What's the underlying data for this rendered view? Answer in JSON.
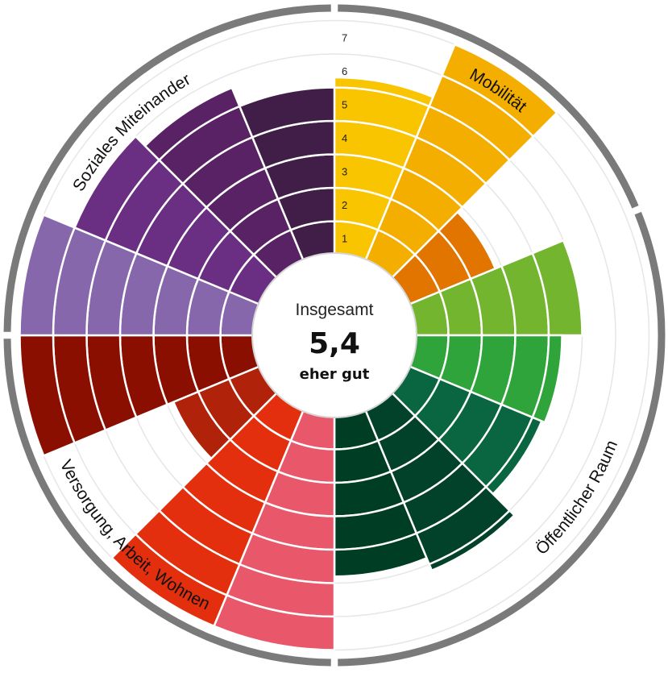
{
  "chart_data": {
    "type": "radial-bar",
    "center": {
      "title": "Insgesamt",
      "value": "5,4",
      "rating": "eher gut"
    },
    "scale": {
      "min": 0,
      "max": 7,
      "ticks": [
        "1",
        "2",
        "3",
        "4",
        "5",
        "6",
        "7"
      ],
      "grid": true
    },
    "categories": [
      {
        "label": "Mobilität",
        "color": "#7a7a7a"
      },
      {
        "label": "Öffentlicher Raum",
        "color": "#7a7a7a"
      },
      {
        "label": "Versorgung, Arbeit, Wohnen",
        "color": "#7a7a7a"
      },
      {
        "label": "Soziales Miteinander",
        "color": "#7a7a7a"
      }
    ],
    "segments": [
      {
        "category": "Mobilität",
        "value": 5.3,
        "color": "#f9c400"
      },
      {
        "category": "Mobilität",
        "value": 7.0,
        "color": "#f4ae00"
      },
      {
        "category": "Mobilität",
        "value": 2.8,
        "color": "#e27400"
      },
      {
        "category": "Öffentlicher Raum",
        "value": 5.0,
        "color": "#74b52f"
      },
      {
        "category": "Öffentlicher Raum",
        "value": 4.4,
        "color": "#2fa43a"
      },
      {
        "category": "Öffentlicher Raum",
        "value": 4.3,
        "color": "#0a6641"
      },
      {
        "category": "Öffentlicher Raum",
        "value": 5.2,
        "color": "#03422a"
      },
      {
        "category": "Öffentlicher Raum",
        "value": 4.8,
        "color": "#003d25"
      },
      {
        "category": "Versorgung, Arbeit, Wohnen",
        "value": 7.0,
        "color": "#e9576a"
      },
      {
        "category": "Versorgung, Arbeit, Wohnen",
        "value": 7.0,
        "color": "#e32f0d"
      },
      {
        "category": "Versorgung, Arbeit, Wohnen",
        "value": 2.8,
        "color": "#b0220a"
      },
      {
        "category": "Versorgung, Arbeit, Wohnen",
        "value": 7.0,
        "color": "#8a0f00"
      },
      {
        "category": "Soziales Miteinander",
        "value": 7.0,
        "color": "#8667ab"
      },
      {
        "category": "Soziales Miteinander",
        "value": 6.0,
        "color": "#6a2f82"
      },
      {
        "category": "Soziales Miteinander",
        "value": 5.6,
        "color": "#582264"
      },
      {
        "category": "Soziales Miteinander",
        "value": 5.0,
        "color": "#401e48"
      }
    ]
  }
}
